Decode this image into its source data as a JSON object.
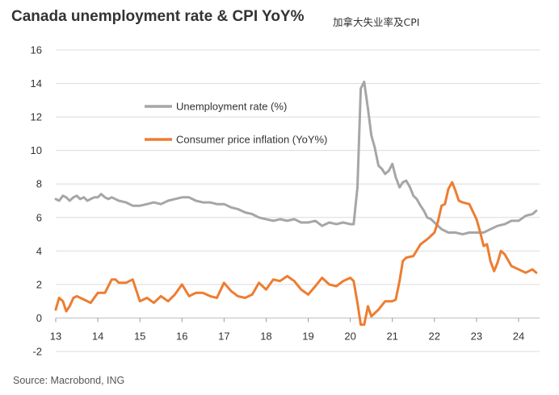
{
  "header": {
    "title": "Canada unemployment rate & CPI YoY%",
    "subtitle": "加拿大失业率及CPI"
  },
  "footer": {
    "source": "Source: Macrobond, ING"
  },
  "colors": {
    "unemployment": "#a6a6a6",
    "cpi": "#ed7d31",
    "grid": "#dcdcdc"
  },
  "chart_data": {
    "type": "line",
    "title": "Canada unemployment rate & CPI YoY%",
    "xlabel": "",
    "ylabel": "",
    "xlim": [
      2013.0,
      2024.5
    ],
    "ylim": [
      -2,
      16
    ],
    "yticks": [
      -2,
      0,
      2,
      4,
      6,
      8,
      10,
      12,
      14,
      16
    ],
    "xticks": [
      {
        "value": 2013,
        "label": "13"
      },
      {
        "value": 2014,
        "label": "14"
      },
      {
        "value": 2015,
        "label": "15"
      },
      {
        "value": 2016,
        "label": "16"
      },
      {
        "value": 2017,
        "label": "17"
      },
      {
        "value": 2018,
        "label": "18"
      },
      {
        "value": 2019,
        "label": "19"
      },
      {
        "value": 2020,
        "label": "20"
      },
      {
        "value": 2021,
        "label": "21"
      },
      {
        "value": 2022,
        "label": "22"
      },
      {
        "value": 2023,
        "label": "23"
      },
      {
        "value": 2024,
        "label": "24"
      }
    ],
    "grid": "horizontal",
    "legend_position": "upper-center",
    "series": [
      {
        "name": "Unemployment rate (%)",
        "color": "#a6a6a6",
        "x": [
          2013.0,
          2013.08,
          2013.17,
          2013.25,
          2013.33,
          2013.42,
          2013.5,
          2013.58,
          2013.67,
          2013.75,
          2013.83,
          2013.92,
          2014.0,
          2014.08,
          2014.17,
          2014.25,
          2014.33,
          2014.5,
          2014.67,
          2014.83,
          2015.0,
          2015.17,
          2015.33,
          2015.5,
          2015.67,
          2015.83,
          2016.0,
          2016.17,
          2016.33,
          2016.5,
          2016.67,
          2016.83,
          2017.0,
          2017.17,
          2017.33,
          2017.5,
          2017.67,
          2017.83,
          2018.0,
          2018.17,
          2018.33,
          2018.5,
          2018.67,
          2018.83,
          2019.0,
          2019.17,
          2019.33,
          2019.5,
          2019.67,
          2019.83,
          2020.0,
          2020.08,
          2020.17,
          2020.25,
          2020.33,
          2020.42,
          2020.5,
          2020.58,
          2020.67,
          2020.75,
          2020.83,
          2020.92,
          2021.0,
          2021.08,
          2021.17,
          2021.25,
          2021.33,
          2021.42,
          2021.5,
          2021.58,
          2021.67,
          2021.75,
          2021.83,
          2021.92,
          2022.0,
          2022.17,
          2022.33,
          2022.5,
          2022.67,
          2022.83,
          2023.0,
          2023.17,
          2023.33,
          2023.5,
          2023.67,
          2023.83,
          2024.0,
          2024.17,
          2024.33,
          2024.42
        ],
        "values": [
          7.1,
          7.0,
          7.3,
          7.2,
          7.0,
          7.2,
          7.3,
          7.1,
          7.2,
          7.0,
          7.1,
          7.2,
          7.2,
          7.4,
          7.2,
          7.1,
          7.2,
          7.0,
          6.9,
          6.7,
          6.7,
          6.8,
          6.9,
          6.8,
          7.0,
          7.1,
          7.2,
          7.2,
          7.0,
          6.9,
          6.9,
          6.8,
          6.8,
          6.6,
          6.5,
          6.3,
          6.2,
          6.0,
          5.9,
          5.8,
          5.9,
          5.8,
          5.9,
          5.7,
          5.7,
          5.8,
          5.5,
          5.7,
          5.6,
          5.7,
          5.6,
          5.6,
          7.8,
          13.7,
          14.1,
          12.5,
          10.9,
          10.2,
          9.1,
          8.9,
          8.6,
          8.8,
          9.2,
          8.4,
          7.8,
          8.1,
          8.2,
          7.8,
          7.3,
          7.1,
          6.7,
          6.4,
          6.0,
          5.9,
          5.7,
          5.3,
          5.1,
          5.1,
          5.0,
          5.1,
          5.1,
          5.1,
          5.3,
          5.5,
          5.6,
          5.8,
          5.8,
          6.1,
          6.2,
          6.4
        ]
      },
      {
        "name": "Consumer price inflation (YoY%)",
        "color": "#ed7d31",
        "x": [
          2013.0,
          2013.08,
          2013.17,
          2013.25,
          2013.33,
          2013.42,
          2013.5,
          2013.67,
          2013.83,
          2014.0,
          2014.17,
          2014.33,
          2014.42,
          2014.5,
          2014.67,
          2014.83,
          2015.0,
          2015.17,
          2015.33,
          2015.5,
          2015.67,
          2015.83,
          2016.0,
          2016.17,
          2016.33,
          2016.5,
          2016.67,
          2016.83,
          2017.0,
          2017.17,
          2017.33,
          2017.5,
          2017.67,
          2017.83,
          2018.0,
          2018.17,
          2018.33,
          2018.5,
          2018.67,
          2018.83,
          2019.0,
          2019.17,
          2019.33,
          2019.5,
          2019.67,
          2019.83,
          2020.0,
          2020.08,
          2020.17,
          2020.25,
          2020.33,
          2020.42,
          2020.5,
          2020.67,
          2020.83,
          2021.0,
          2021.08,
          2021.17,
          2021.25,
          2021.33,
          2021.5,
          2021.67,
          2021.83,
          2022.0,
          2022.08,
          2022.17,
          2022.25,
          2022.33,
          2022.42,
          2022.5,
          2022.58,
          2022.67,
          2022.83,
          2023.0,
          2023.08,
          2023.17,
          2023.25,
          2023.33,
          2023.42,
          2023.5,
          2023.58,
          2023.67,
          2023.83,
          2024.0,
          2024.17,
          2024.33,
          2024.42
        ],
        "values": [
          0.5,
          1.2,
          1.0,
          0.4,
          0.7,
          1.2,
          1.3,
          1.1,
          0.9,
          1.5,
          1.5,
          2.3,
          2.3,
          2.1,
          2.1,
          2.3,
          1.0,
          1.2,
          0.9,
          1.3,
          1.0,
          1.4,
          2.0,
          1.3,
          1.5,
          1.5,
          1.3,
          1.2,
          2.1,
          1.6,
          1.3,
          1.2,
          1.4,
          2.1,
          1.7,
          2.3,
          2.2,
          2.5,
          2.2,
          1.7,
          1.4,
          1.9,
          2.4,
          2.0,
          1.9,
          2.2,
          2.4,
          2.2,
          0.9,
          -0.4,
          -0.4,
          0.7,
          0.1,
          0.5,
          1.0,
          1.0,
          1.1,
          2.2,
          3.4,
          3.6,
          3.7,
          4.4,
          4.7,
          5.1,
          5.7,
          6.7,
          6.8,
          7.7,
          8.1,
          7.6,
          7.0,
          6.9,
          6.8,
          5.9,
          5.2,
          4.3,
          4.4,
          3.4,
          2.8,
          3.3,
          4.0,
          3.8,
          3.1,
          2.9,
          2.7,
          2.9,
          2.7
        ]
      }
    ]
  }
}
